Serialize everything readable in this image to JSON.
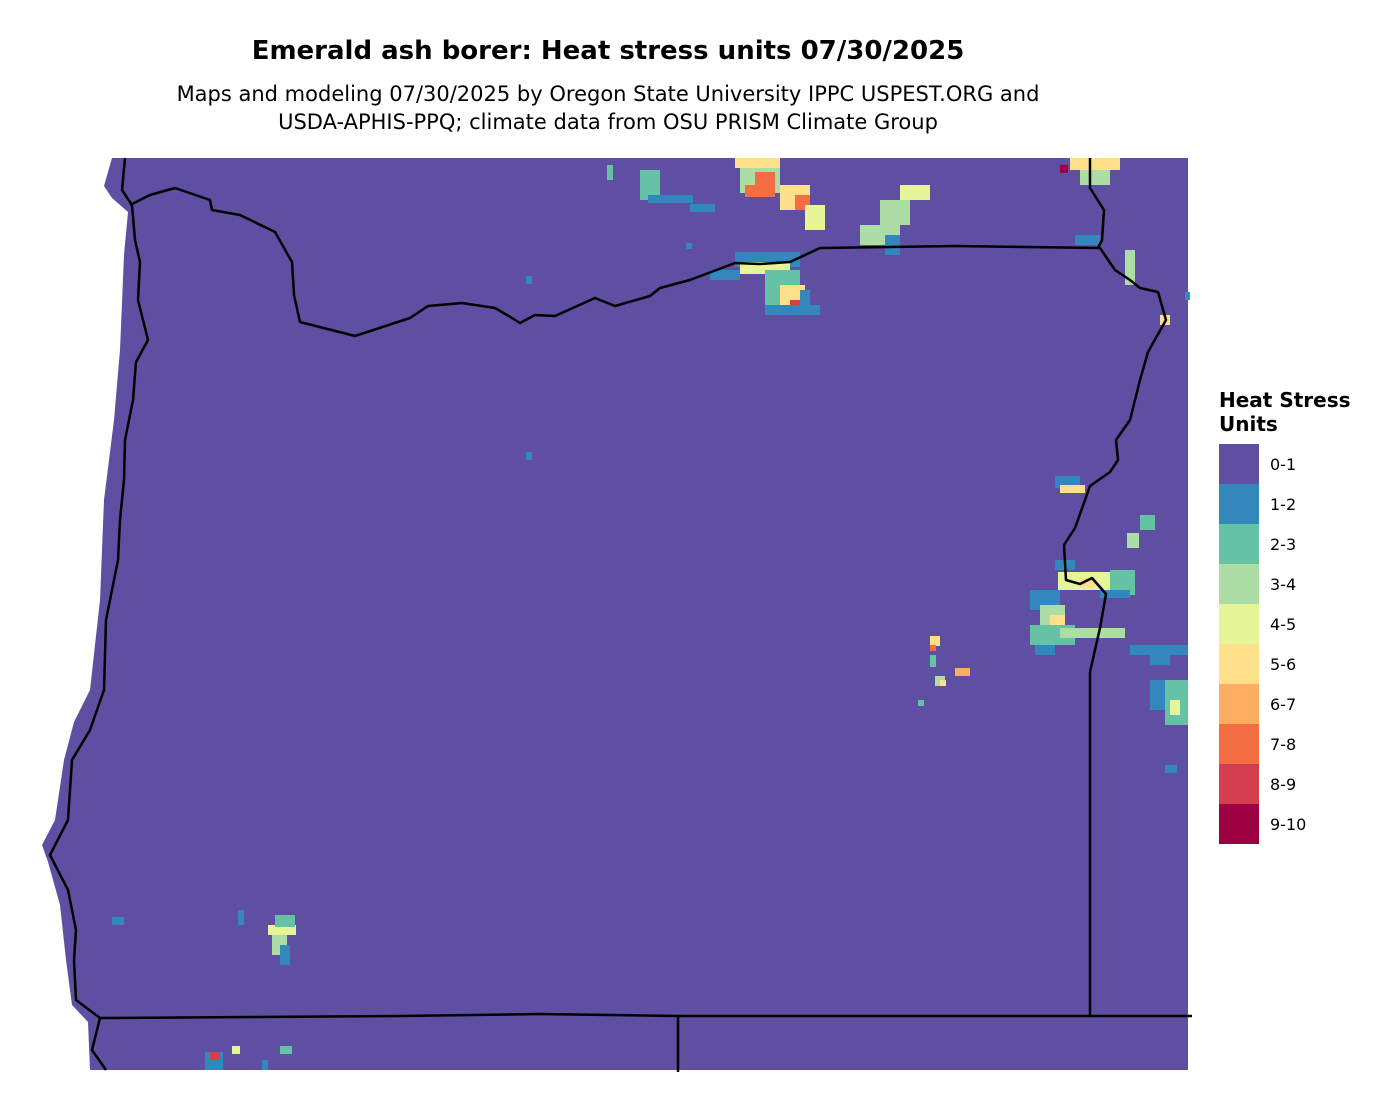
{
  "title": "Emerald ash borer: Heat stress units 07/30/2025",
  "subtitle_line1": "Maps and modeling 07/30/2025 by Oregon State University IPPC USPEST.ORG and",
  "subtitle_line2": "USDA-APHIS-PPQ; climate data from OSU PRISM Climate Group",
  "legend": {
    "title_line1": "Heat Stress",
    "title_line2": "Units",
    "items": [
      {
        "label": "0-1",
        "color": "#5E4FA2"
      },
      {
        "label": "1-2",
        "color": "#3288BD"
      },
      {
        "label": "2-3",
        "color": "#66C2A5"
      },
      {
        "label": "3-4",
        "color": "#ABDDA4"
      },
      {
        "label": "4-5",
        "color": "#E6F598"
      },
      {
        "label": "5-6",
        "color": "#FEE08B"
      },
      {
        "label": "6-7",
        "color": "#FDAE61"
      },
      {
        "label": "7-8",
        "color": "#F46D43"
      },
      {
        "label": "8-9",
        "color": "#D53E4F"
      },
      {
        "label": "9-10",
        "color": "#9E0142"
      }
    ]
  }
}
